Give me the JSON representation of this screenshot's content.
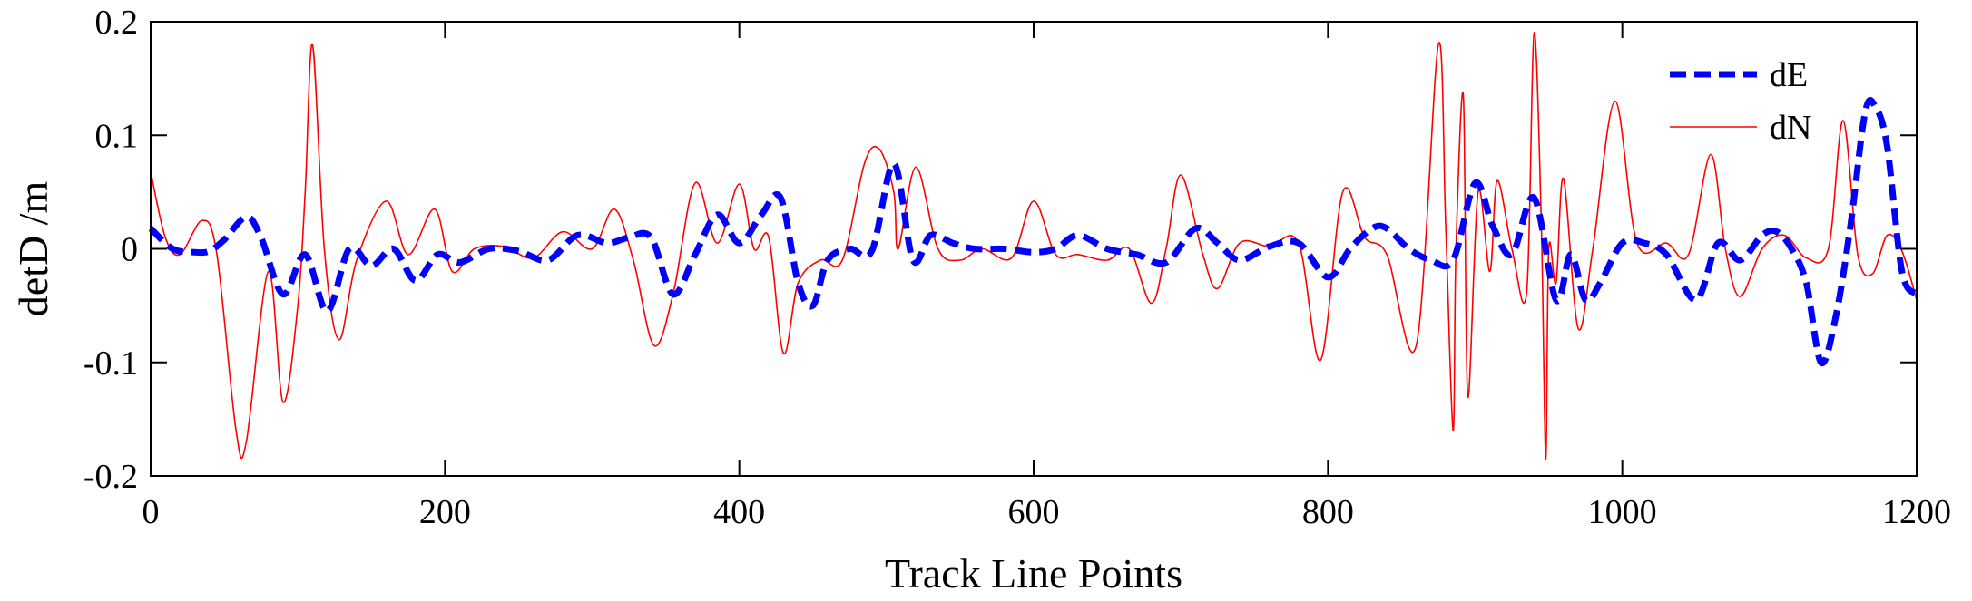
{
  "chart_data": {
    "type": "line",
    "title": "",
    "xlabel": "Track Line Points",
    "ylabel": "detD /m",
    "xlim": [
      0,
      1200
    ],
    "ylim": [
      -0.2,
      0.2
    ],
    "xticks": [
      0,
      200,
      400,
      600,
      800,
      1000,
      1200
    ],
    "xtick_labels": [
      "0",
      "200",
      "400",
      "600",
      "800",
      "1000",
      "1200"
    ],
    "yticks": [
      -0.2,
      -0.1,
      0,
      0.1,
      0.2
    ],
    "ytick_labels": [
      "-0.2",
      "-0.1",
      "0",
      "0.1",
      "0.2"
    ],
    "grid": false,
    "legend_position": "top-right",
    "series": [
      {
        "name": "dE",
        "color": "#0000FF",
        "style": "dashed",
        "x": [
          0,
          15,
          30,
          40,
          50,
          65,
          75,
          90,
          105,
          120,
          135,
          150,
          165,
          180,
          195,
          210,
          230,
          250,
          270,
          290,
          310,
          325,
          340,
          355,
          370,
          385,
          400,
          415,
          428,
          440,
          450,
          460,
          475,
          490,
          505,
          518,
          530,
          545,
          560,
          580,
          600,
          615,
          630,
          650,
          670,
          690,
          710,
          725,
          740,
          760,
          780,
          800,
          815,
          830,
          840,
          855,
          870,
          885,
          900,
          912,
          925,
          940,
          955,
          965,
          975,
          985,
          1000,
          1015,
          1030,
          1050,
          1065,
          1080,
          1095,
          1105,
          1115,
          1125,
          1135,
          1145,
          1155,
          1165,
          1172,
          1180,
          1190,
          1200
        ],
        "y": [
          0.018,
          0.0,
          -0.003,
          -0.002,
          0.008,
          0.028,
          0.01,
          -0.04,
          -0.005,
          -0.055,
          0.0,
          -0.015,
          0.0,
          -0.028,
          -0.005,
          -0.012,
          0.0,
          -0.002,
          -0.01,
          0.012,
          0.005,
          0.01,
          0.01,
          -0.04,
          -0.005,
          0.03,
          0.005,
          0.03,
          0.045,
          -0.03,
          -0.05,
          -0.01,
          0.0,
          -0.002,
          0.075,
          -0.01,
          0.012,
          0.005,
          0.0,
          0.0,
          -0.003,
          0.0,
          0.012,
          0.0,
          -0.005,
          -0.012,
          0.018,
          0.005,
          -0.01,
          0.002,
          0.005,
          -0.025,
          0.0,
          0.018,
          0.018,
          0.0,
          -0.01,
          -0.01,
          0.058,
          0.02,
          -0.005,
          0.045,
          -0.045,
          -0.005,
          -0.045,
          -0.03,
          0.005,
          0.005,
          -0.005,
          -0.045,
          0.005,
          -0.01,
          0.012,
          0.015,
          0.0,
          -0.03,
          -0.1,
          -0.06,
          0.02,
          0.12,
          0.125,
          0.09,
          -0.02,
          -0.04
        ]
      },
      {
        "name": "dN",
        "color": "#FF0000",
        "style": "solid",
        "x": [
          0,
          10,
          20,
          35,
          45,
          58,
          65,
          80,
          90,
          100,
          105,
          110,
          118,
          128,
          140,
          160,
          175,
          193,
          205,
          220,
          240,
          260,
          280,
          300,
          315,
          328,
          342,
          355,
          370,
          385,
          400,
          410,
          420,
          430,
          440,
          455,
          470,
          485,
          495,
          505,
          508,
          520,
          535,
          550,
          565,
          585,
          600,
          615,
          630,
          650,
          665,
          680,
          690,
          700,
          715,
          725,
          740,
          760,
          780,
          795,
          810,
          825,
          840,
          860,
          875,
          880,
          885,
          887,
          892,
          895,
          902,
          910,
          915,
          925,
          935,
          940,
          945,
          948,
          950,
          955,
          960,
          970,
          980,
          995,
          1010,
          1030,
          1045,
          1060,
          1070,
          1080,
          1095,
          1110,
          1125,
          1140,
          1150,
          1160,
          1170,
          1180,
          1190,
          1200
        ],
        "y": [
          0.068,
          0.01,
          -0.005,
          0.025,
          -0.005,
          -0.16,
          -0.17,
          -0.02,
          -0.135,
          -0.05,
          0.05,
          0.18,
          0.0,
          -0.08,
          -0.01,
          0.042,
          -0.005,
          0.035,
          -0.02,
          0.0,
          0.002,
          -0.008,
          0.015,
          0.0,
          0.035,
          -0.01,
          -0.085,
          -0.04,
          0.058,
          0.005,
          0.057,
          0.0,
          0.01,
          -0.092,
          -0.03,
          -0.01,
          -0.01,
          0.075,
          0.088,
          0.05,
          0.0,
          0.072,
          0.0,
          -0.01,
          0.0,
          -0.008,
          0.042,
          -0.005,
          -0.005,
          -0.01,
          0.0,
          -0.048,
          0.0,
          0.065,
          -0.005,
          -0.035,
          0.005,
          0.002,
          0.005,
          -0.098,
          0.05,
          0.01,
          -0.005,
          -0.085,
          0.18,
          0.02,
          -0.16,
          0.0,
          0.135,
          -0.13,
          0.05,
          -0.02,
          0.06,
          0.0,
          -0.038,
          0.19,
          0.02,
          -0.185,
          0.0,
          -0.03,
          0.062,
          -0.07,
          0.0,
          0.13,
          0.005,
          0.005,
          -0.005,
          0.083,
          0.0,
          -0.042,
          0.0,
          0.012,
          -0.008,
          0.0,
          0.113,
          -0.005,
          -0.022,
          0.012,
          -0.002,
          -0.045
        ]
      }
    ]
  }
}
